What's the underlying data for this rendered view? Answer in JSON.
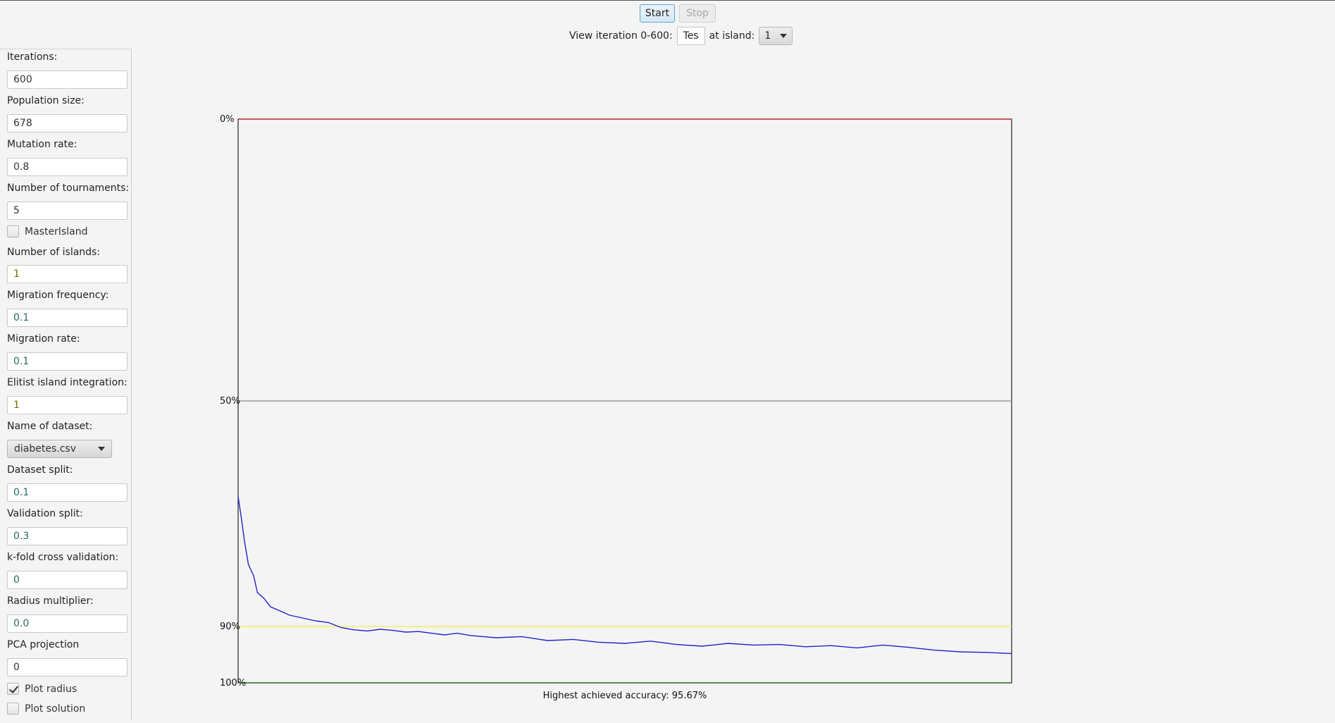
{
  "controls": {
    "start_label": "Start",
    "stop_label": "Stop",
    "view_label": "View iteration 0-600:",
    "view_field_value": "Tes",
    "island_label": "at island:",
    "island_value": "1"
  },
  "sidebar": {
    "iterations": {
      "label": "Iterations:",
      "value": "600"
    },
    "population": {
      "label": "Population size:",
      "value": "678"
    },
    "mutation": {
      "label": "Mutation rate:",
      "value": "0.8"
    },
    "tournaments": {
      "label": "Number of tournaments:",
      "value": "5"
    },
    "master_island": {
      "label": "MasterIsland",
      "checked": false
    },
    "islands": {
      "label": "Number of islands:",
      "value": "1"
    },
    "migration_freq": {
      "label": "Migration frequency:",
      "value": "0.1"
    },
    "migration_rate": {
      "label": "Migration rate:",
      "value": "0.1"
    },
    "elitist": {
      "label": "Elitist island integration:",
      "value": "1"
    },
    "dataset": {
      "label": "Name of dataset:",
      "value": "diabetes.csv"
    },
    "dataset_split": {
      "label": "Dataset split:",
      "value": "0.1"
    },
    "validation_split": {
      "label": "Validation split:",
      "value": "0.3"
    },
    "kfold": {
      "label": "k-fold cross validation:",
      "value": "0"
    },
    "radius": {
      "label": "Radius multiplier:",
      "value": "0.0"
    },
    "pca": {
      "label": "PCA projection",
      "value": "0"
    },
    "plot_radius": {
      "label": "Plot radius",
      "checked": true
    },
    "plot_solution": {
      "label": "Plot solution",
      "checked": false
    }
  },
  "chart_data": {
    "type": "line",
    "title": "",
    "xlabel": "",
    "ylabel": "",
    "caption": "Highest achieved accuracy: 95.67%",
    "y_ticks": [
      "0%",
      "50%",
      "90%",
      "100%"
    ],
    "x_range": [
      0,
      600
    ],
    "reference_lines": [
      {
        "label": "0%",
        "value": 0,
        "color": "#cc3333"
      },
      {
        "label": "50%",
        "value": 50,
        "color": "#9a9a9a"
      },
      {
        "label": "90%",
        "value": 90,
        "color": "#eeee66"
      },
      {
        "label": "100%",
        "value": 100,
        "color": "#337733"
      }
    ],
    "series": [
      {
        "color": "#2222cc",
        "x": [
          0,
          2,
          5,
          8,
          12,
          15,
          20,
          25,
          30,
          35,
          40,
          50,
          60,
          70,
          80,
          90,
          100,
          110,
          120,
          130,
          140,
          150,
          160,
          170,
          180,
          190,
          200,
          220,
          240,
          260,
          280,
          300,
          320,
          340,
          360,
          380,
          400,
          420,
          440,
          460,
          480,
          500,
          520,
          540,
          560,
          580,
          600
        ],
        "values": [
          67,
          70,
          75,
          79,
          81,
          84,
          85,
          86.5,
          87,
          87.5,
          88,
          88.5,
          89,
          89.3,
          90.2,
          90.6,
          90.8,
          90.5,
          90.7,
          91,
          90.9,
          91.2,
          91.5,
          91.2,
          91.6,
          91.8,
          92,
          91.8,
          92.5,
          92.3,
          92.8,
          93,
          92.6,
          93.2,
          93.5,
          93,
          93.3,
          93.2,
          93.6,
          93.4,
          93.8,
          93.3,
          93.7,
          94.2,
          94.5,
          94.6,
          94.8
        ]
      }
    ]
  }
}
